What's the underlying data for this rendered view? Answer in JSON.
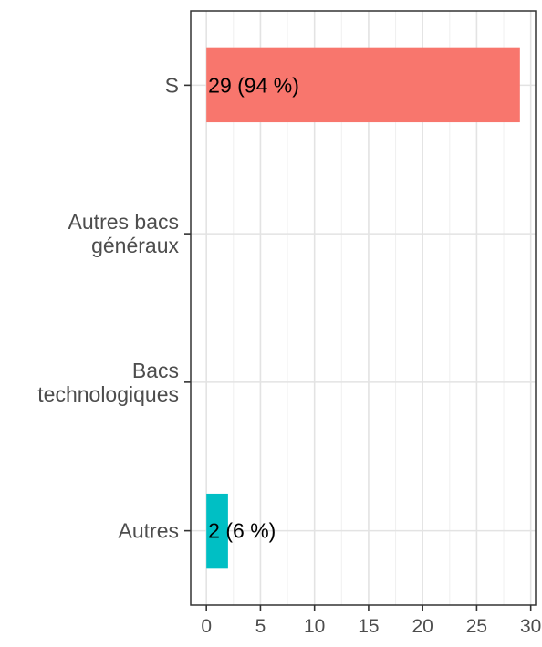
{
  "chart_data": {
    "type": "bar",
    "orientation": "horizontal",
    "categories": [
      [
        "S"
      ],
      [
        "Autres bacs",
        "généraux"
      ],
      [
        "Bacs",
        "technologiques"
      ],
      [
        "Autres"
      ]
    ],
    "values": [
      29,
      0,
      0,
      2
    ],
    "bar_labels": [
      "29 (94 %)",
      "",
      "",
      "2 (6 %)"
    ],
    "bar_colors": [
      "#f8766d",
      "#7cae00",
      "#00bfc4",
      "#00bfc4"
    ],
    "xticks": [
      0,
      5,
      10,
      15,
      20,
      25,
      30
    ],
    "xlim": [
      -1.45,
      30.45
    ],
    "title": "",
    "xlabel": "",
    "ylabel": "",
    "grid": true,
    "legend": "none"
  }
}
